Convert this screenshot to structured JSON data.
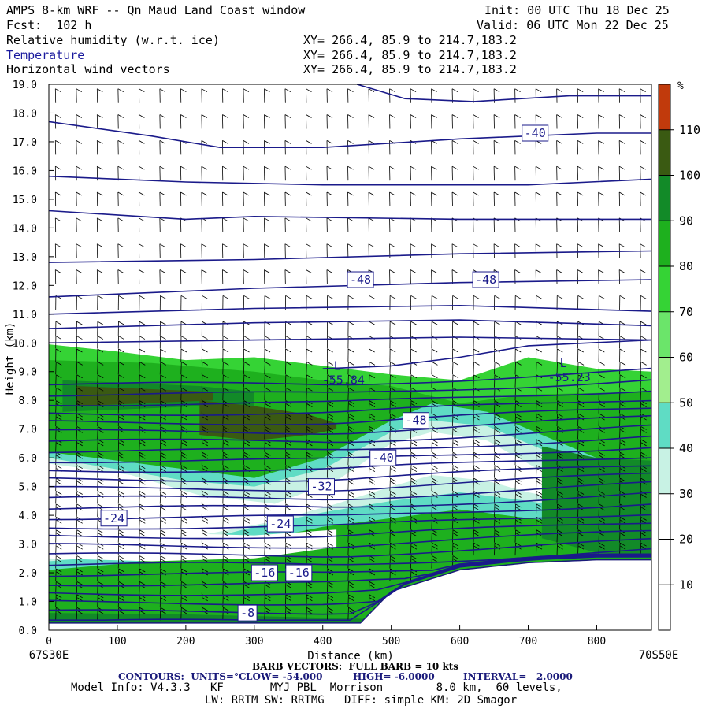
{
  "header": {
    "title": "AMPS 8-km WRF -- Qn Maud Land Coast window",
    "init": "Init: 00 UTC Thu 18 Dec 25",
    "fcst": "Fcst:  102 h",
    "valid": "Valid: 06 UTC Mon 22 Dec 25",
    "fields": [
      {
        "name": "Relative humidity (w.r.t. ice)",
        "xy": "XY= 266.4, 85.9 to 214.7,183.2"
      },
      {
        "name": "Temperature",
        "xy": "XY= 266.4, 85.9 to 214.7,183.2"
      },
      {
        "name": "Horizontal wind vectors",
        "xy": "XY= 266.4, 85.9 to 214.7,183.2"
      }
    ]
  },
  "chart_data": {
    "type": "heatmap",
    "title": "Relative humidity (w.r.t. ice), Temperature, Horizontal wind vectors",
    "xlabel": "Distance (km)",
    "ylabel": "Height (km)",
    "xlim": [
      0,
      880
    ],
    "ylim": [
      0,
      19
    ],
    "x_ticks": [
      "0",
      "100",
      "200",
      "300",
      "400",
      "500",
      "600",
      "700",
      "800"
    ],
    "y_ticks": [
      "0.0",
      "1.0",
      "2.0",
      "3.0",
      "4.0",
      "5.0",
      "6.0",
      "7.0",
      "8.0",
      "9.0",
      "10.0",
      "11.0",
      "12.0",
      "13.0",
      "14.0",
      "15.0",
      "16.0",
      "17.0",
      "18.0",
      "19.0"
    ],
    "x_endpoints": {
      "left": "67S30E",
      "right": "70S50E"
    },
    "colorbar": {
      "unit": "%",
      "labels": [
        "10",
        "20",
        "30",
        "40",
        "50",
        "60",
        "70",
        "80",
        "90",
        "100",
        "110"
      ],
      "levels": [
        0,
        10,
        20,
        30,
        40,
        50,
        60,
        70,
        80,
        90,
        100,
        110,
        120
      ],
      "colors": [
        "#ffffff",
        "#ffffff",
        "#ffffff",
        "#c8f2e4",
        "#5fdcc4",
        "#a2ee8e",
        "#6be56a",
        "#35d335",
        "#1eb01e",
        "#128a28",
        "#3a5a12",
        "#c13a0c"
      ]
    },
    "contour_labels": [
      "-40",
      "-48",
      "-48",
      "-48",
      "-40",
      "-32",
      "-24",
      "-24",
      "-16",
      "-16",
      "-8"
    ],
    "extrema": [
      {
        "mark": "L",
        "value": "-55.84"
      },
      {
        "mark": "L",
        "value": "-55.23"
      }
    ],
    "temperature_low": -54.0,
    "temperature_high": -6.0,
    "interval": 2.0
  },
  "footer": {
    "barb": "BARB VECTORS:  FULL BARB = 10 kts",
    "contours_label": "CONTOURS:  UNITS=°C",
    "low": "LOW= -54.000",
    "high": "HIGH= -6.0000",
    "interval": "INTERVAL=   2.0000",
    "model_info": "Model Info: V4.3.3   KF       MYJ PBL  Morrison        8.0 km,  60 levels,",
    "physics": "LW: RRTM SW: RRTMG   DIFF: simple KM: 2D Smagor"
  }
}
